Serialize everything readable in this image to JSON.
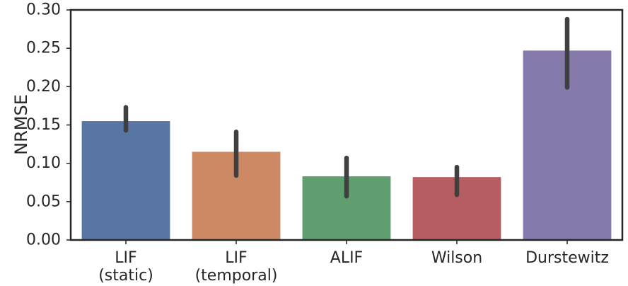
{
  "chart_data": {
    "type": "bar",
    "title": "",
    "xlabel": "",
    "ylabel": "NRMSE",
    "ylim": [
      0,
      0.3
    ],
    "yticks": [
      "0.00",
      "0.05",
      "0.10",
      "0.15",
      "0.20",
      "0.25",
      "0.30"
    ],
    "categories": [
      [
        "LIF",
        "(static)"
      ],
      [
        "LIF",
        "(temporal)"
      ],
      [
        "ALIF"
      ],
      [
        "Wilson"
      ],
      [
        "Durstewitz"
      ]
    ],
    "values": [
      0.155,
      0.115,
      0.083,
      0.082,
      0.247
    ],
    "error_bars": [
      [
        0.143,
        0.173
      ],
      [
        0.084,
        0.141
      ],
      [
        0.057,
        0.107
      ],
      [
        0.059,
        0.095
      ],
      [
        0.199,
        0.288
      ]
    ],
    "colors": [
      "#5975a4",
      "#cc8963",
      "#5f9e6e",
      "#b55d60",
      "#857aab"
    ],
    "error_color": "#3f3f3f",
    "grid": false,
    "legend": "none"
  }
}
